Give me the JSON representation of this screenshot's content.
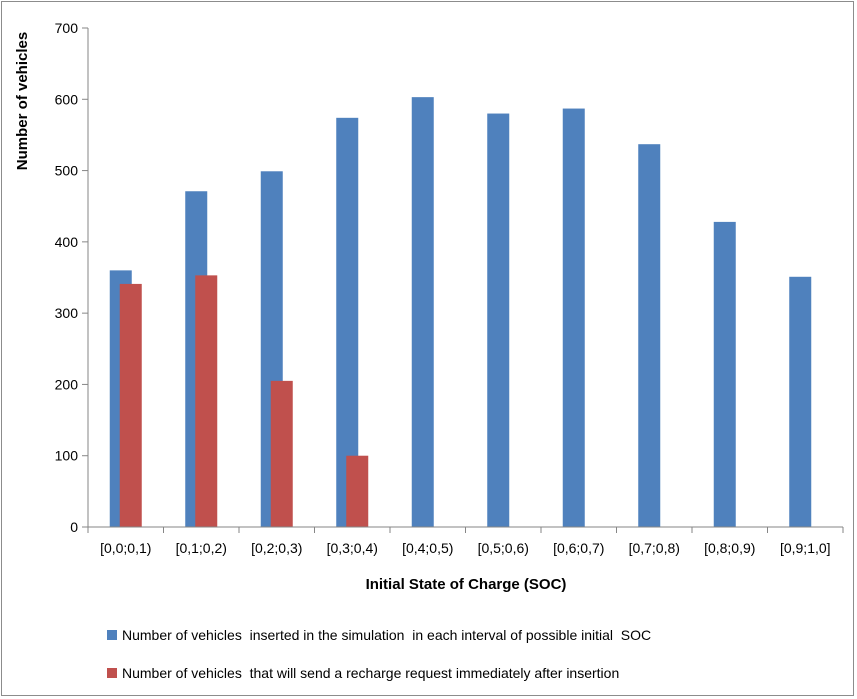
{
  "chart_data": {
    "type": "bar",
    "xlabel": "Initial State of Charge (SOC)",
    "ylabel": "Number  of vehicles",
    "ylim": [
      0,
      700
    ],
    "yticks": [
      0,
      100,
      200,
      300,
      400,
      500,
      600,
      700
    ],
    "grid": false,
    "legend_position": "bottom",
    "categories": [
      "[0,0;0,1)",
      "[0,1;0,2)",
      "[0,2;0,3)",
      "[0,3;0,4)",
      "[0,4;0,5)",
      "[0,5;0,6)",
      "[0,6;0,7)",
      "[0,7;0,8)",
      "[0,8;0,9)",
      "[0,9;1,0]"
    ],
    "series": [
      {
        "name": "Number of vehicles  inserted in the simulation  in each interval of possible initial  SOC",
        "color": "#4f81bd",
        "values": [
          360,
          471,
          499,
          574,
          603,
          580,
          587,
          537,
          428,
          351
        ]
      },
      {
        "name": "Number of vehicles  that will send a recharge request immediately after insertion",
        "color": "#c0504d",
        "values": [
          341,
          353,
          205,
          100,
          null,
          null,
          null,
          null,
          null,
          null
        ]
      }
    ]
  }
}
